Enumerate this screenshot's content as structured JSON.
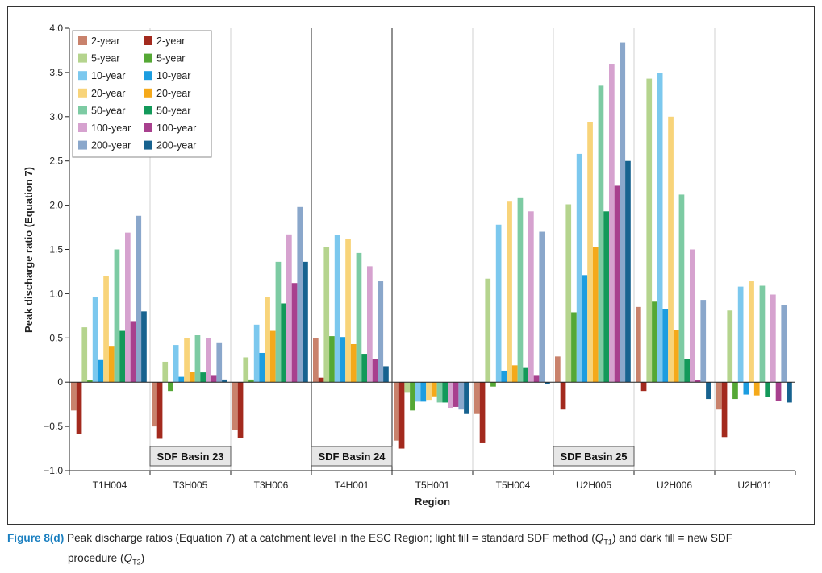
{
  "chart_data": {
    "type": "bar",
    "ylabel": "Peak discharge ratio (Equation 7)",
    "xlabel": "Region",
    "ylim": [
      -1.0,
      4.0
    ],
    "yticks": [
      4.0,
      3.5,
      3.0,
      2.5,
      2.0,
      1.5,
      1.0,
      0.5,
      0,
      -0.5,
      -1.0
    ],
    "ytick_labels": [
      "4.0",
      "3.5",
      "3.0",
      "2.5",
      "2.0",
      "1.5",
      "1.0",
      "0.5",
      "0",
      "−0.5",
      "−1.0"
    ],
    "categories": [
      "T1H004",
      "T3H005",
      "T3H006",
      "T4H001",
      "T5H001",
      "T5H004",
      "U2H005",
      "U2H006",
      "U2H011"
    ],
    "series": [
      {
        "name": "2-year",
        "method": "standard",
        "color": "#c9826c",
        "values": [
          -0.32,
          -0.5,
          -0.54,
          0.5,
          -0.66,
          -0.36,
          0.29,
          0.85,
          -0.31
        ]
      },
      {
        "name": "2-year",
        "method": "new",
        "color": "#a32a1e",
        "values": [
          -0.59,
          -0.64,
          -0.63,
          0.05,
          -0.75,
          -0.69,
          -0.31,
          -0.1,
          -0.62
        ]
      },
      {
        "name": "5-year",
        "method": "standard",
        "color": "#b5d48e",
        "values": [
          0.62,
          0.23,
          0.28,
          1.53,
          -0.12,
          1.17,
          2.01,
          3.43,
          0.81
        ]
      },
      {
        "name": "5-year",
        "method": "new",
        "color": "#55a835",
        "values": [
          0.02,
          -0.1,
          0.03,
          0.52,
          -0.32,
          -0.05,
          0.79,
          0.91,
          -0.19
        ]
      },
      {
        "name": "10-year",
        "method": "standard",
        "color": "#7cc8ee",
        "values": [
          0.96,
          0.42,
          0.65,
          1.66,
          -0.22,
          1.78,
          2.58,
          3.49,
          1.08
        ]
      },
      {
        "name": "10-year",
        "method": "new",
        "color": "#1c9de0",
        "values": [
          0.25,
          0.06,
          0.33,
          0.51,
          -0.22,
          0.13,
          1.21,
          0.83,
          -0.14
        ]
      },
      {
        "name": "20-year",
        "method": "standard",
        "color": "#f8d47a",
        "values": [
          1.2,
          0.5,
          0.96,
          1.62,
          -0.2,
          2.04,
          2.94,
          3.0,
          1.14
        ]
      },
      {
        "name": "20-year",
        "method": "new",
        "color": "#f5a91a",
        "values": [
          0.41,
          0.12,
          0.58,
          0.43,
          -0.16,
          0.19,
          1.53,
          0.59,
          -0.15
        ]
      },
      {
        "name": "50-year",
        "method": "standard",
        "color": "#7dcba3",
        "values": [
          1.5,
          0.53,
          1.36,
          1.46,
          -0.23,
          2.08,
          3.35,
          2.12,
          1.09
        ]
      },
      {
        "name": "50-year",
        "method": "new",
        "color": "#13995a",
        "values": [
          0.58,
          0.11,
          0.89,
          0.32,
          -0.23,
          0.16,
          1.93,
          0.26,
          -0.17
        ]
      },
      {
        "name": "100-year",
        "method": "standard",
        "color": "#d6a2cf",
        "values": [
          1.69,
          0.5,
          1.67,
          1.31,
          -0.29,
          1.93,
          3.59,
          1.5,
          0.99
        ]
      },
      {
        "name": "100-year",
        "method": "new",
        "color": "#a8408e",
        "values": [
          0.69,
          0.08,
          1.12,
          0.26,
          -0.28,
          0.08,
          2.22,
          0.02,
          -0.21
        ]
      },
      {
        "name": "200-year",
        "method": "standard",
        "color": "#8aa7cb",
        "values": [
          1.88,
          0.45,
          1.98,
          1.14,
          -0.31,
          1.7,
          3.84,
          0.93,
          0.87
        ]
      },
      {
        "name": "200-year",
        "method": "new",
        "color": "#17628f",
        "values": [
          0.8,
          0.03,
          1.36,
          0.18,
          -0.36,
          -0.02,
          2.5,
          -0.19,
          -0.23
        ]
      }
    ],
    "legend": {
      "placement": "top-left",
      "left_column": [
        "2-year",
        "5-year",
        "10-year",
        "20-year",
        "50-year",
        "100-year",
        "200-year"
      ],
      "right_column": [
        "2-year",
        "5-year",
        "10-year",
        "20-year",
        "50-year",
        "100-year",
        "200-year"
      ]
    },
    "annotations": [
      {
        "text": "SDF Basin 23",
        "categories": [
          "T1H004",
          "T3H005",
          "T3H006"
        ]
      },
      {
        "text": "SDF Basin 24",
        "categories": [
          "T4H001"
        ]
      },
      {
        "text": "SDF Basin 25",
        "categories": [
          "T5H001",
          "T5H004",
          "U2H005",
          "U2H006",
          "U2H011"
        ]
      }
    ]
  },
  "caption": {
    "label": "Figure 8(d)",
    "text_part1": "Peak discharge ratios (Equation 7) at a catchment level in the ESC Region; light fill = standard SDF method (",
    "q1_main": "Q",
    "q1_sub": "T1",
    "text_part2": ") and dark fill = new SDF",
    "text_part3": "procedure (",
    "q2_main": "Q",
    "q2_sub": "T2",
    "text_part4": ")"
  }
}
